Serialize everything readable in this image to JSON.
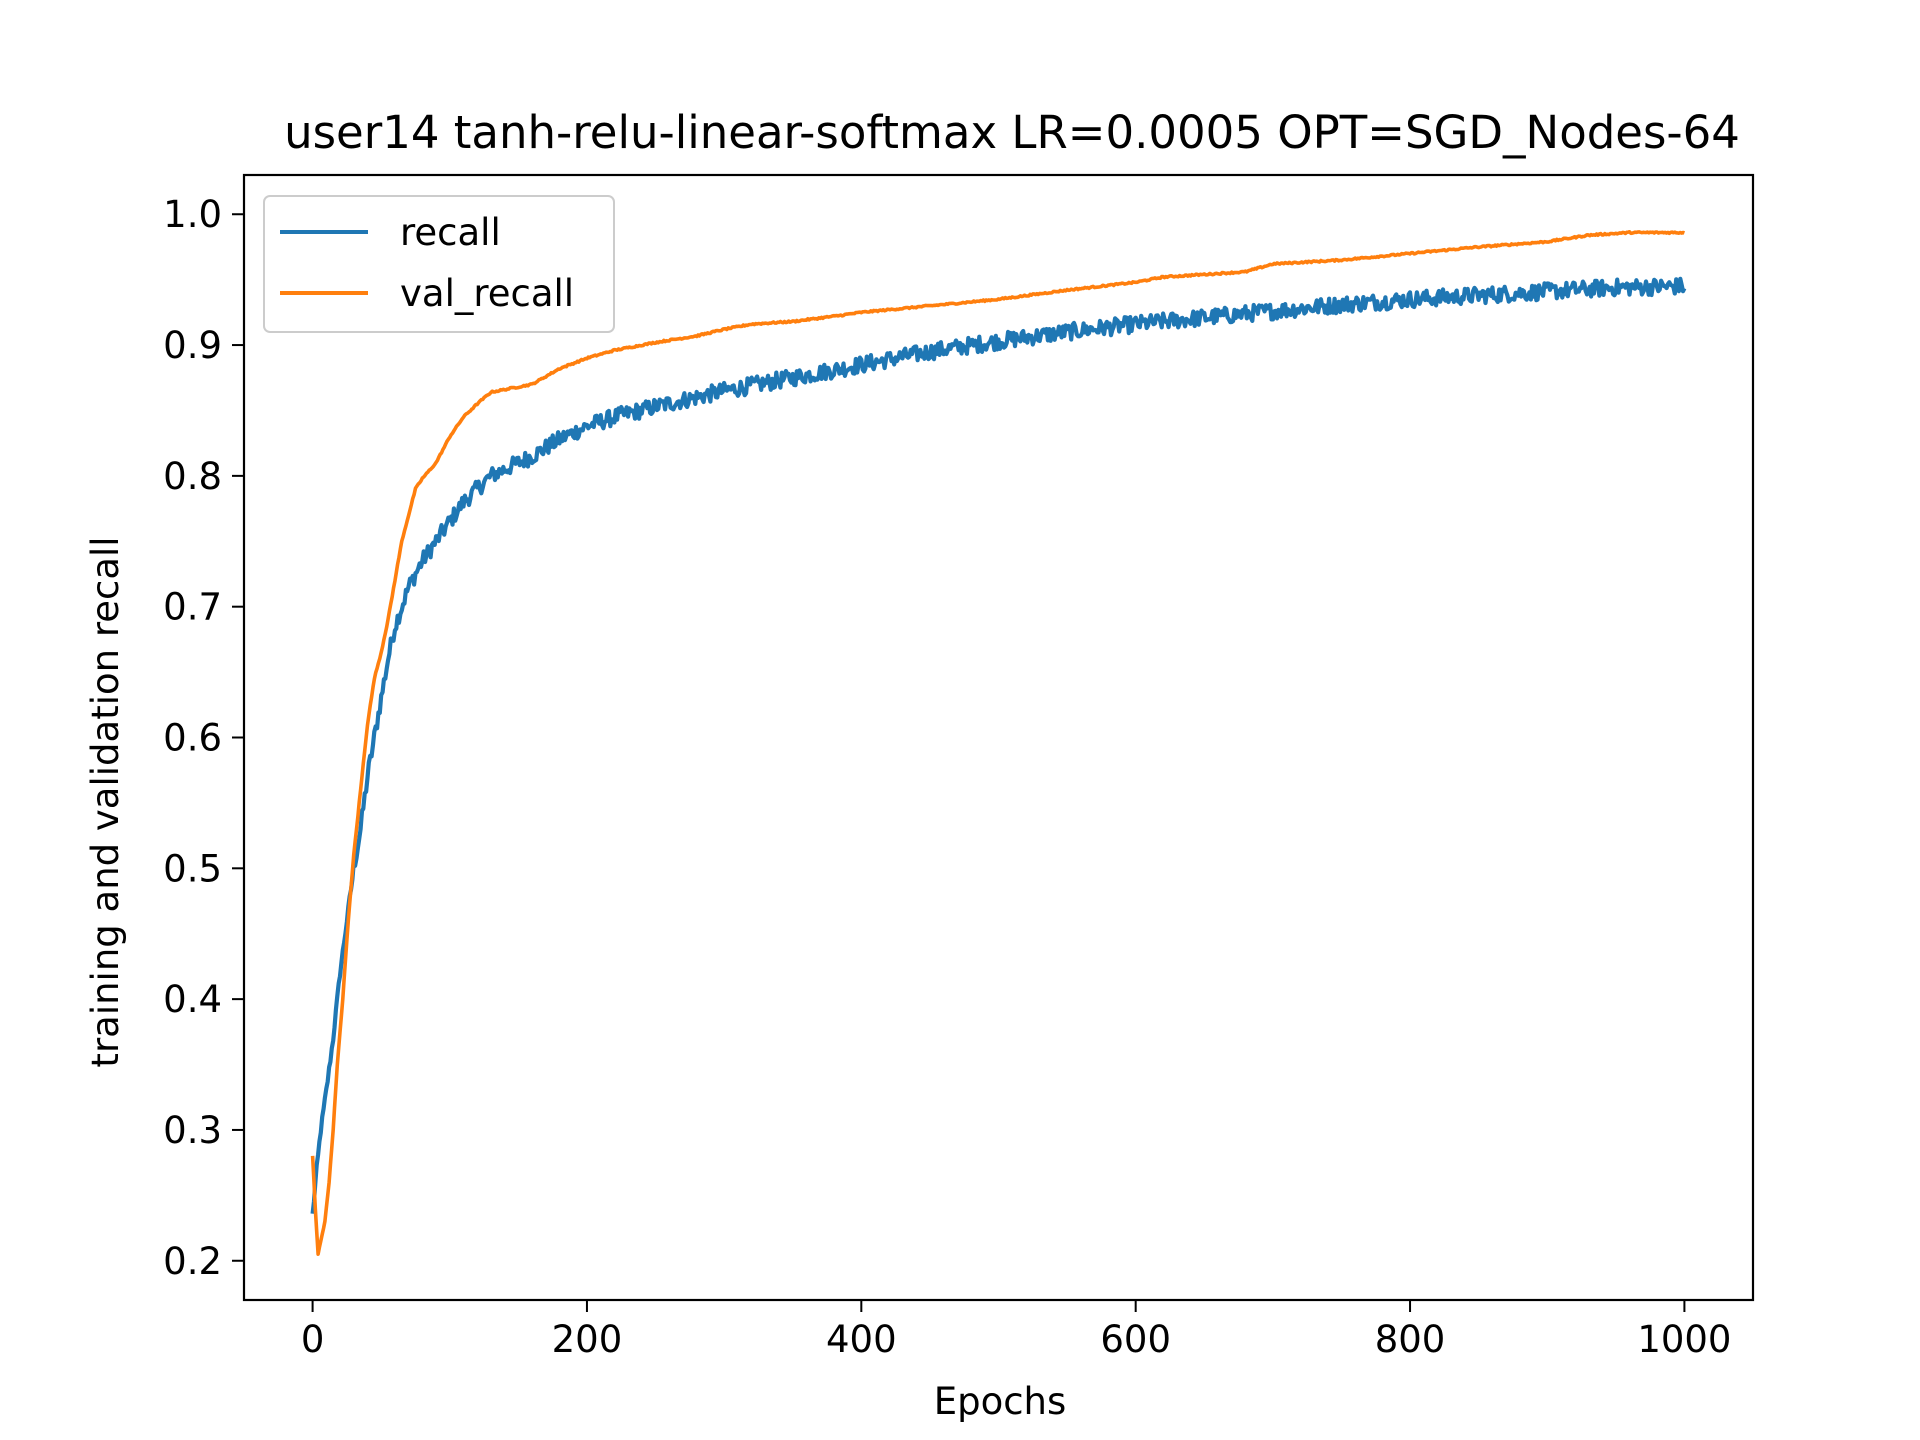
{
  "chart_data": {
    "type": "line",
    "title": "user14 tanh-relu-linear-softmax LR=0.0005 OPT=SGD_Nodes-64",
    "xlabel": "Epochs",
    "ylabel": "training and validation recall",
    "xlim": [
      -50,
      1050
    ],
    "ylim": [
      0.17,
      1.03
    ],
    "xticks": [
      0,
      200,
      400,
      600,
      800,
      1000
    ],
    "xtick_labels": [
      "0",
      "200",
      "400",
      "600",
      "800",
      "1000"
    ],
    "yticks": [
      0.2,
      0.3,
      0.4,
      0.5,
      0.6,
      0.7,
      0.8,
      0.9,
      1.0
    ],
    "ytick_labels": [
      "0.2",
      "0.3",
      "0.4",
      "0.5",
      "0.6",
      "0.7",
      "0.8",
      "0.9",
      "1.0"
    ],
    "grid": false,
    "legend": "top-left",
    "series": [
      {
        "name": "recall",
        "color": "#1f77b4",
        "noise": 0.004,
        "points": [
          [
            0,
            0.235
          ],
          [
            3,
            0.27
          ],
          [
            6,
            0.3
          ],
          [
            10,
            0.33
          ],
          [
            15,
            0.37
          ],
          [
            20,
            0.42
          ],
          [
            25,
            0.46
          ],
          [
            30,
            0.5
          ],
          [
            35,
            0.53
          ],
          [
            40,
            0.57
          ],
          [
            45,
            0.6
          ],
          [
            50,
            0.63
          ],
          [
            55,
            0.66
          ],
          [
            60,
            0.685
          ],
          [
            65,
            0.7
          ],
          [
            70,
            0.715
          ],
          [
            80,
            0.735
          ],
          [
            90,
            0.75
          ],
          [
            100,
            0.765
          ],
          [
            110,
            0.78
          ],
          [
            120,
            0.79
          ],
          [
            130,
            0.8
          ],
          [
            140,
            0.805
          ],
          [
            150,
            0.81
          ],
          [
            160,
            0.815
          ],
          [
            180,
            0.828
          ],
          [
            200,
            0.838
          ],
          [
            220,
            0.845
          ],
          [
            250,
            0.853
          ],
          [
            300,
            0.865
          ],
          [
            350,
            0.875
          ],
          [
            400,
            0.885
          ],
          [
            450,
            0.895
          ],
          [
            500,
            0.903
          ],
          [
            550,
            0.91
          ],
          [
            600,
            0.916
          ],
          [
            650,
            0.921
          ],
          [
            700,
            0.926
          ],
          [
            750,
            0.931
          ],
          [
            800,
            0.935
          ],
          [
            850,
            0.938
          ],
          [
            900,
            0.941
          ],
          [
            950,
            0.944
          ],
          [
            1000,
            0.945
          ]
        ]
      },
      {
        "name": "val_recall",
        "color": "#ff7f0e",
        "noise": 0.0006,
        "points": [
          [
            0,
            0.28
          ],
          [
            2,
            0.24
          ],
          [
            4,
            0.205
          ],
          [
            6,
            0.215
          ],
          [
            9,
            0.23
          ],
          [
            12,
            0.26
          ],
          [
            15,
            0.3
          ],
          [
            18,
            0.35
          ],
          [
            22,
            0.4
          ],
          [
            26,
            0.46
          ],
          [
            30,
            0.51
          ],
          [
            35,
            0.56
          ],
          [
            40,
            0.61
          ],
          [
            45,
            0.645
          ],
          [
            50,
            0.665
          ],
          [
            55,
            0.69
          ],
          [
            60,
            0.72
          ],
          [
            65,
            0.75
          ],
          [
            70,
            0.77
          ],
          [
            75,
            0.79
          ],
          [
            80,
            0.798
          ],
          [
            90,
            0.81
          ],
          [
            100,
            0.83
          ],
          [
            110,
            0.845
          ],
          [
            120,
            0.855
          ],
          [
            130,
            0.864
          ],
          [
            140,
            0.866
          ],
          [
            160,
            0.87
          ],
          [
            180,
            0.882
          ],
          [
            200,
            0.89
          ],
          [
            220,
            0.896
          ],
          [
            250,
            0.902
          ],
          [
            280,
            0.907
          ],
          [
            300,
            0.912
          ],
          [
            320,
            0.916
          ],
          [
            350,
            0.918
          ],
          [
            380,
            0.922
          ],
          [
            400,
            0.925
          ],
          [
            450,
            0.93
          ],
          [
            500,
            0.935
          ],
          [
            550,
            0.942
          ],
          [
            600,
            0.948
          ],
          [
            620,
            0.952
          ],
          [
            650,
            0.954
          ],
          [
            680,
            0.956
          ],
          [
            700,
            0.962
          ],
          [
            750,
            0.965
          ],
          [
            800,
            0.97
          ],
          [
            850,
            0.975
          ],
          [
            900,
            0.979
          ],
          [
            930,
            0.984
          ],
          [
            960,
            0.986
          ],
          [
            1000,
            0.986
          ]
        ]
      }
    ]
  }
}
